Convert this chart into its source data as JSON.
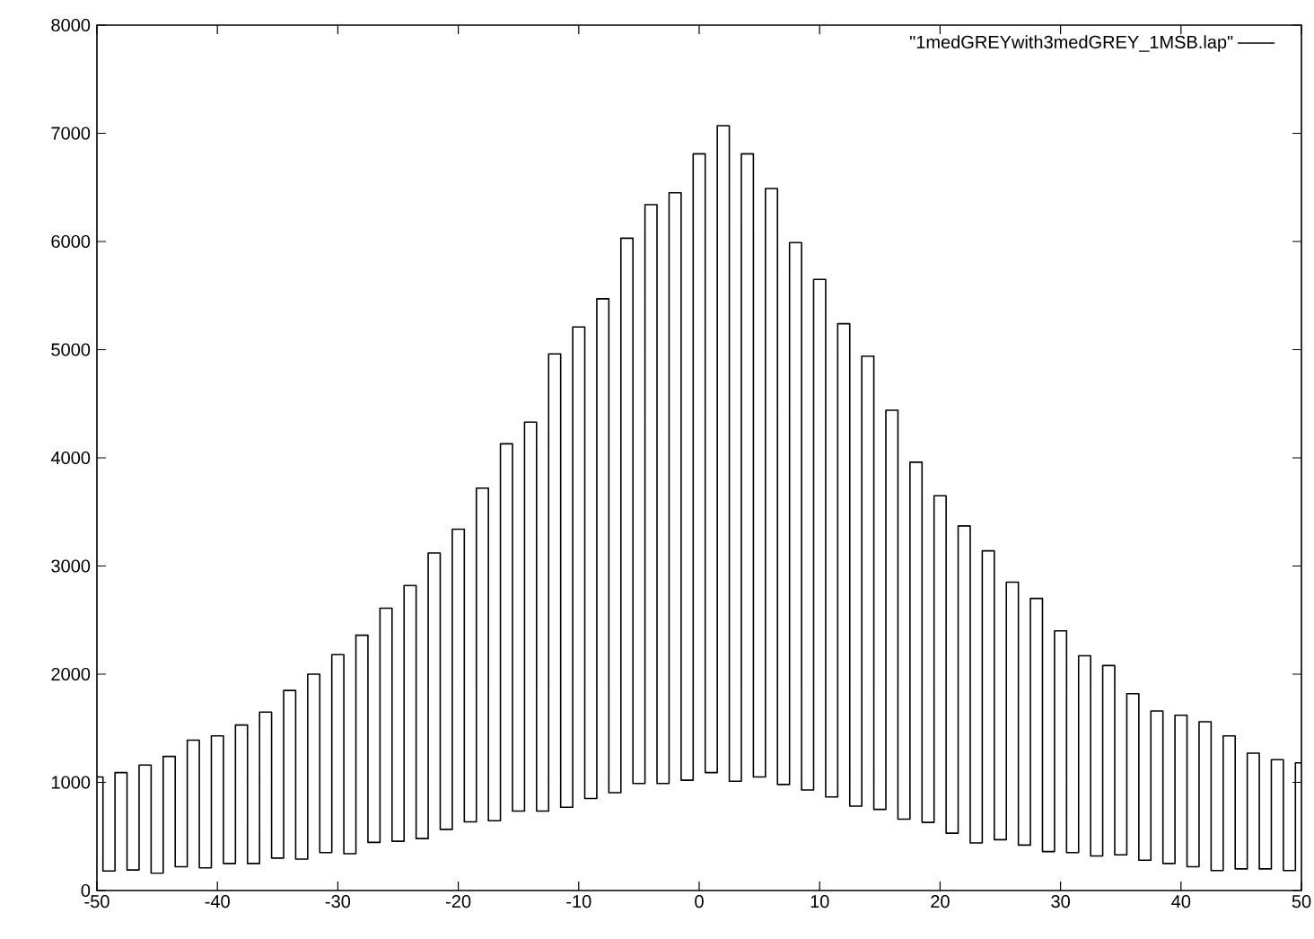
{
  "chart_data": {
    "type": "step",
    "xlim": [
      -50,
      50
    ],
    "ylim": [
      0,
      8000
    ],
    "xticks": [
      -50,
      -40,
      -30,
      -20,
      -10,
      0,
      10,
      20,
      30,
      40,
      50
    ],
    "yticks": [
      0,
      1000,
      2000,
      3000,
      4000,
      5000,
      6000,
      7000,
      8000
    ],
    "legend": "top right",
    "grid": false,
    "line_style": "solid",
    "marker": "none",
    "series": [
      {
        "name": "\"1medGREYwith3medGREY_1MSB.lap\"",
        "color": "#000000",
        "x": [
          -50,
          -49,
          -48,
          -47,
          -46,
          -45,
          -44,
          -43,
          -42,
          -41,
          -40,
          -39,
          -38,
          -37,
          -36,
          -35,
          -34,
          -33,
          -32,
          -31,
          -30,
          -29,
          -28,
          -27,
          -26,
          -25,
          -24,
          -23,
          -22,
          -21,
          -20,
          -19,
          -18,
          -17,
          -16,
          -15,
          -14,
          -13,
          -12,
          -11,
          -10,
          -9,
          -8,
          -7,
          -6,
          -5,
          -4,
          -3,
          -2,
          -1,
          0,
          1,
          2,
          3,
          4,
          5,
          6,
          7,
          8,
          9,
          10,
          11,
          12,
          13,
          14,
          15,
          16,
          17,
          18,
          19,
          20,
          21,
          22,
          23,
          24,
          25,
          26,
          27,
          28,
          29,
          30,
          31,
          32,
          33,
          34,
          35,
          36,
          37,
          38,
          39,
          40,
          41,
          42,
          43,
          44,
          45,
          46,
          47,
          48,
          49,
          50
        ],
        "values": [
          1050,
          180,
          1090,
          190,
          1160,
          160,
          1240,
          220,
          1390,
          210,
          1430,
          250,
          1530,
          250,
          1650,
          300,
          1850,
          290,
          2000,
          350,
          2180,
          340,
          2360,
          445,
          2610,
          455,
          2820,
          480,
          3120,
          565,
          3340,
          635,
          3720,
          645,
          4130,
          735,
          4330,
          735,
          4960,
          770,
          5210,
          850,
          5470,
          905,
          6030,
          990,
          6340,
          990,
          6450,
          1020,
          6810,
          1090,
          7070,
          1010,
          6810,
          1050,
          6490,
          980,
          5990,
          930,
          5650,
          865,
          5240,
          780,
          4940,
          750,
          4440,
          660,
          3960,
          630,
          3650,
          530,
          3370,
          440,
          3140,
          470,
          2850,
          420,
          2700,
          360,
          2400,
          350,
          2170,
          320,
          2080,
          330,
          1820,
          280,
          1660,
          250,
          1620,
          220,
          1560,
          185,
          1430,
          200,
          1270,
          200,
          1210,
          185,
          1180
        ]
      }
    ]
  }
}
